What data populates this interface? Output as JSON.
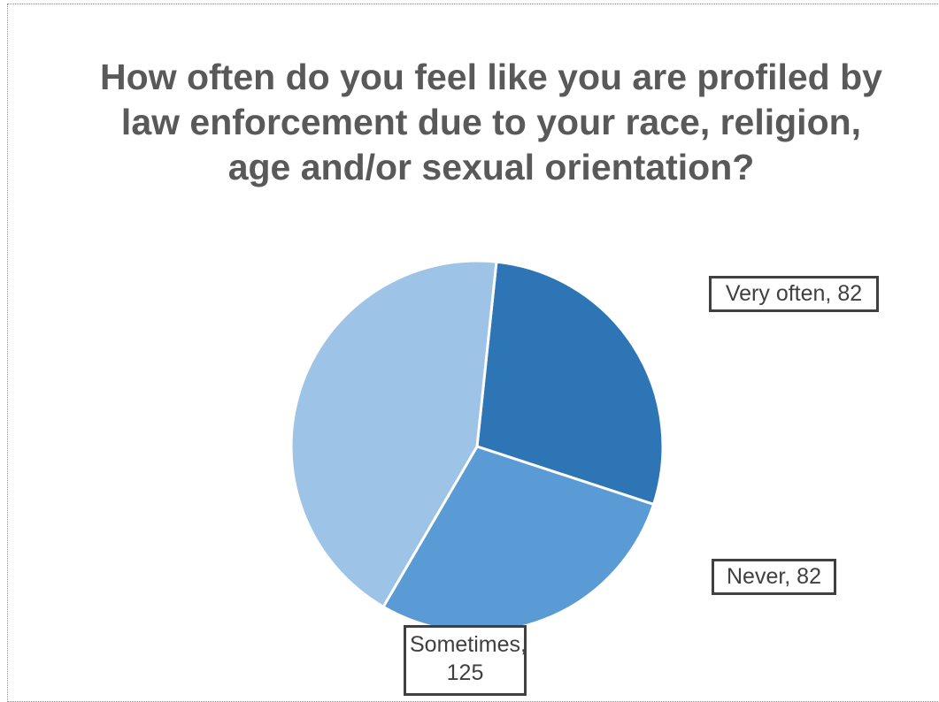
{
  "chart_data": {
    "type": "pie",
    "title": "How often do you feel like you are profiled by law enforcement due to your race, religion, age and/or sexual orientation?",
    "slices": [
      {
        "label": "Very often",
        "value": 82,
        "color": "#2e75b6",
        "data_label": "Very often, 82"
      },
      {
        "label": "Never",
        "value": 82,
        "color": "#5b9bd5",
        "data_label": "Never, 82"
      },
      {
        "label": "Sometimes",
        "value": 125,
        "color": "#9dc3e6",
        "data_label": "Sometimes, 125"
      }
    ],
    "start_angle_deg": 6,
    "direction": "clockwise",
    "legend": "none"
  }
}
